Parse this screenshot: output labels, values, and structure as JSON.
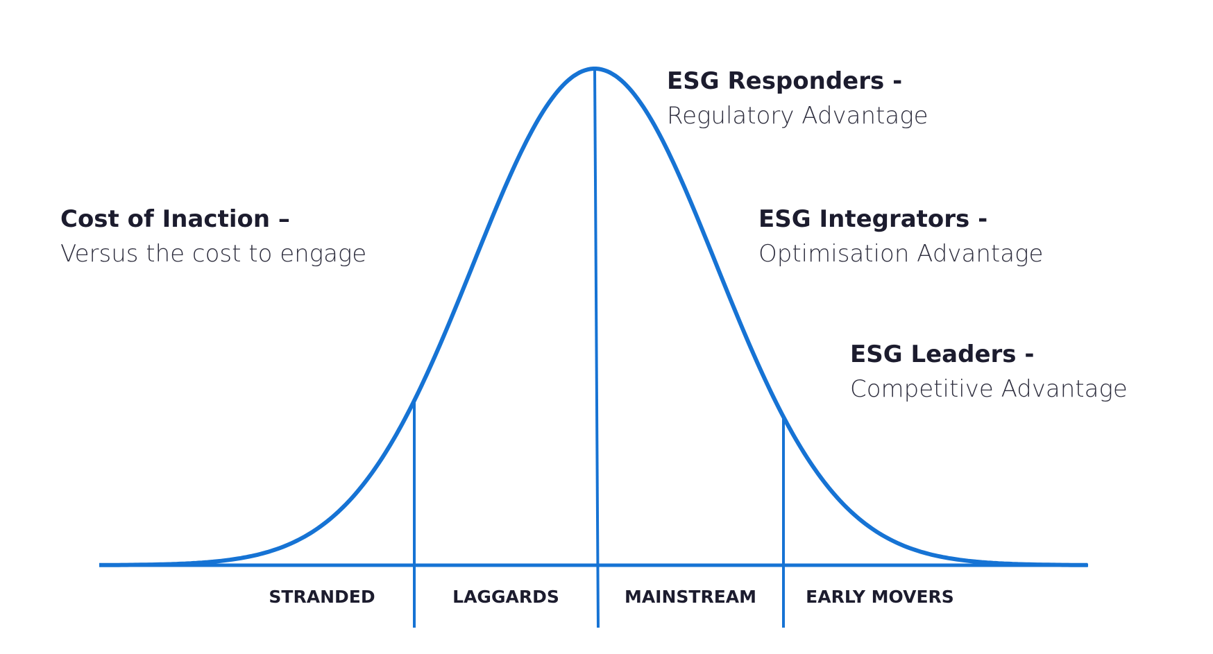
{
  "annotations": [
    {
      "title": "Cost of Inaction –",
      "subtitle": "Versus the cost to engage"
    },
    {
      "title": "ESG Responders -",
      "subtitle": "Regulatory Advantage"
    },
    {
      "title": "ESG Integrators -",
      "subtitle": "Optimisation Advantage"
    },
    {
      "title": "ESG Leaders -",
      "subtitle": "Competitive Advantage"
    }
  ],
  "segments": [
    "STRANDED",
    "LAGGARDS",
    "MAINSTREAM",
    "EARLY MOVERS"
  ]
}
